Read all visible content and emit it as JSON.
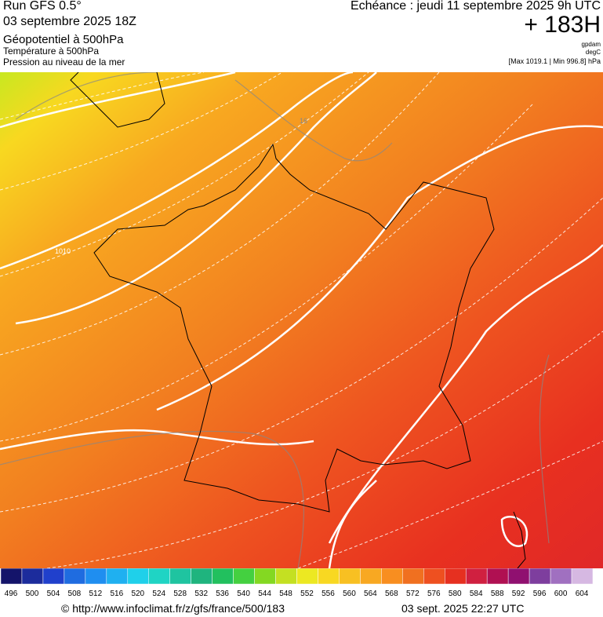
{
  "header": {
    "run": "Run GFS 0.5°",
    "run_date": "03 septembre 2025 18Z",
    "field_1": "Géopotentiel à 500hPa",
    "field_2": "Température à 500hPa",
    "field_3": "Pression au niveau de la mer",
    "valid_time": "Echéance : jeudi 11 septembre 2025 9h UTC",
    "lead": "+ 183H",
    "unit_1": "gpdam",
    "unit_2": "degC",
    "pressure_range": "[Max 1019.1 | Min 996.8] hPa"
  },
  "map": {
    "contour_labels": [
      "16",
      "1010"
    ]
  },
  "legend": {
    "labels": [
      496,
      500,
      504,
      508,
      512,
      516,
      520,
      524,
      528,
      532,
      536,
      540,
      544,
      548,
      552,
      556,
      560,
      564,
      568,
      572,
      576,
      580,
      584,
      588,
      592,
      596,
      600,
      604
    ],
    "colors": [
      "#14146a",
      "#1c2c9c",
      "#2040cc",
      "#1f6ce0",
      "#1f8ef0",
      "#1fb0f0",
      "#1fd0ea",
      "#1fd4c4",
      "#1fc4a0",
      "#1fb47e",
      "#22c05e",
      "#44d040",
      "#84d822",
      "#c4e022",
      "#ece822",
      "#f8d822",
      "#f8c022",
      "#f8a822",
      "#f88e20",
      "#f07020",
      "#ee5020",
      "#e63020",
      "#d02040",
      "#b01052",
      "#901070",
      "#7e3e9e",
      "#a070c0",
      "#d6b8e2"
    ]
  },
  "footer": {
    "url": "© http://www.infoclimat.fr/z/gfs/france/500/183",
    "generated": "03 sept. 2025 22:27 UTC"
  }
}
